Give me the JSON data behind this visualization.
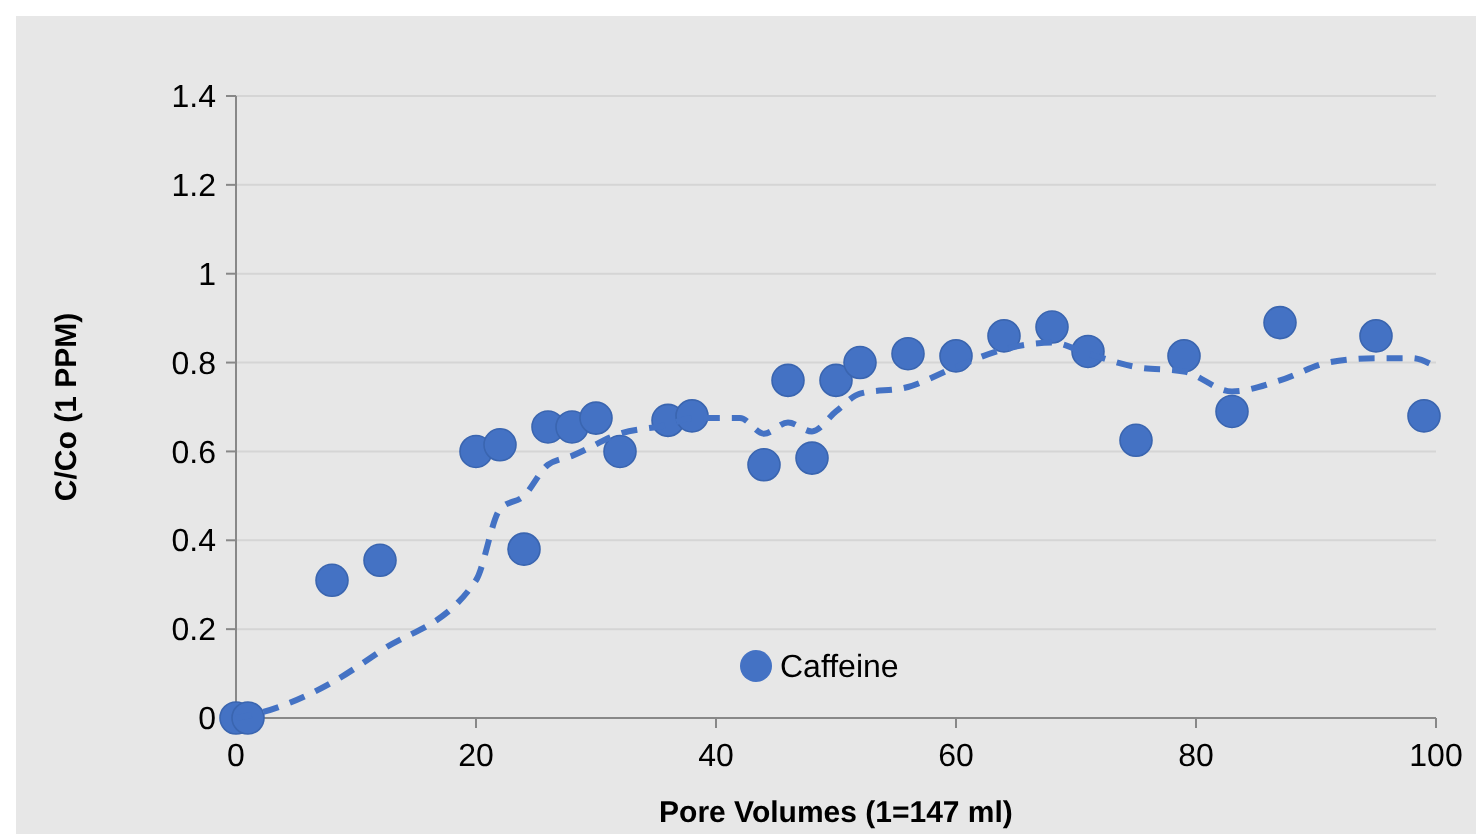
{
  "chart_data": {
    "type": "scatter",
    "xlabel": "Pore Volumes (1=147 ml)",
    "ylabel": "C/Co (1 PPM)",
    "xlim": [
      0,
      100
    ],
    "xticks": [
      0,
      20,
      40,
      60,
      80,
      100
    ],
    "ylim": [
      0,
      1.4
    ],
    "yticks": [
      0,
      0.2,
      0.4,
      0.6,
      0.8,
      1,
      1.2,
      1.4
    ],
    "grid": "y",
    "legend": "bottom",
    "series": [
      {
        "name": "Caffeine",
        "color": "#4472c4",
        "marker": "circle",
        "x": [
          0,
          1,
          8,
          12,
          20,
          22,
          24,
          26,
          28,
          30,
          32,
          36,
          38,
          44,
          46,
          48,
          50,
          52,
          56,
          60,
          64,
          68,
          71,
          75,
          79,
          83,
          87,
          95,
          99
        ],
        "values": [
          0,
          0,
          0.31,
          0.355,
          0.6,
          0.615,
          0.38,
          0.655,
          0.655,
          0.675,
          0.6,
          0.67,
          0.68,
          0.57,
          0.76,
          0.585,
          0.76,
          0.8,
          0.82,
          0.815,
          0.86,
          0.88,
          0.825,
          0.625,
          0.815,
          0.69,
          0.89,
          0.86,
          0.68
        ]
      },
      {
        "type": "line",
        "color": "#4472c4",
        "line_style": "dashed",
        "marker": "none",
        "x": [
          0,
          1,
          8,
          12,
          20,
          22,
          24,
          26,
          28,
          32,
          36,
          38,
          42,
          44,
          46,
          48,
          50,
          52,
          56,
          60,
          64,
          68,
          71,
          75,
          79,
          83,
          87,
          91,
          95,
          98,
          100
        ],
        "values": [
          0,
          0.005,
          0.08,
          0.15,
          0.31,
          0.47,
          0.5,
          0.57,
          0.59,
          0.64,
          0.66,
          0.675,
          0.675,
          0.64,
          0.665,
          0.645,
          0.69,
          0.73,
          0.745,
          0.79,
          0.83,
          0.845,
          0.82,
          0.79,
          0.78,
          0.735,
          0.76,
          0.8,
          0.81,
          0.81,
          0.79
        ]
      }
    ]
  }
}
